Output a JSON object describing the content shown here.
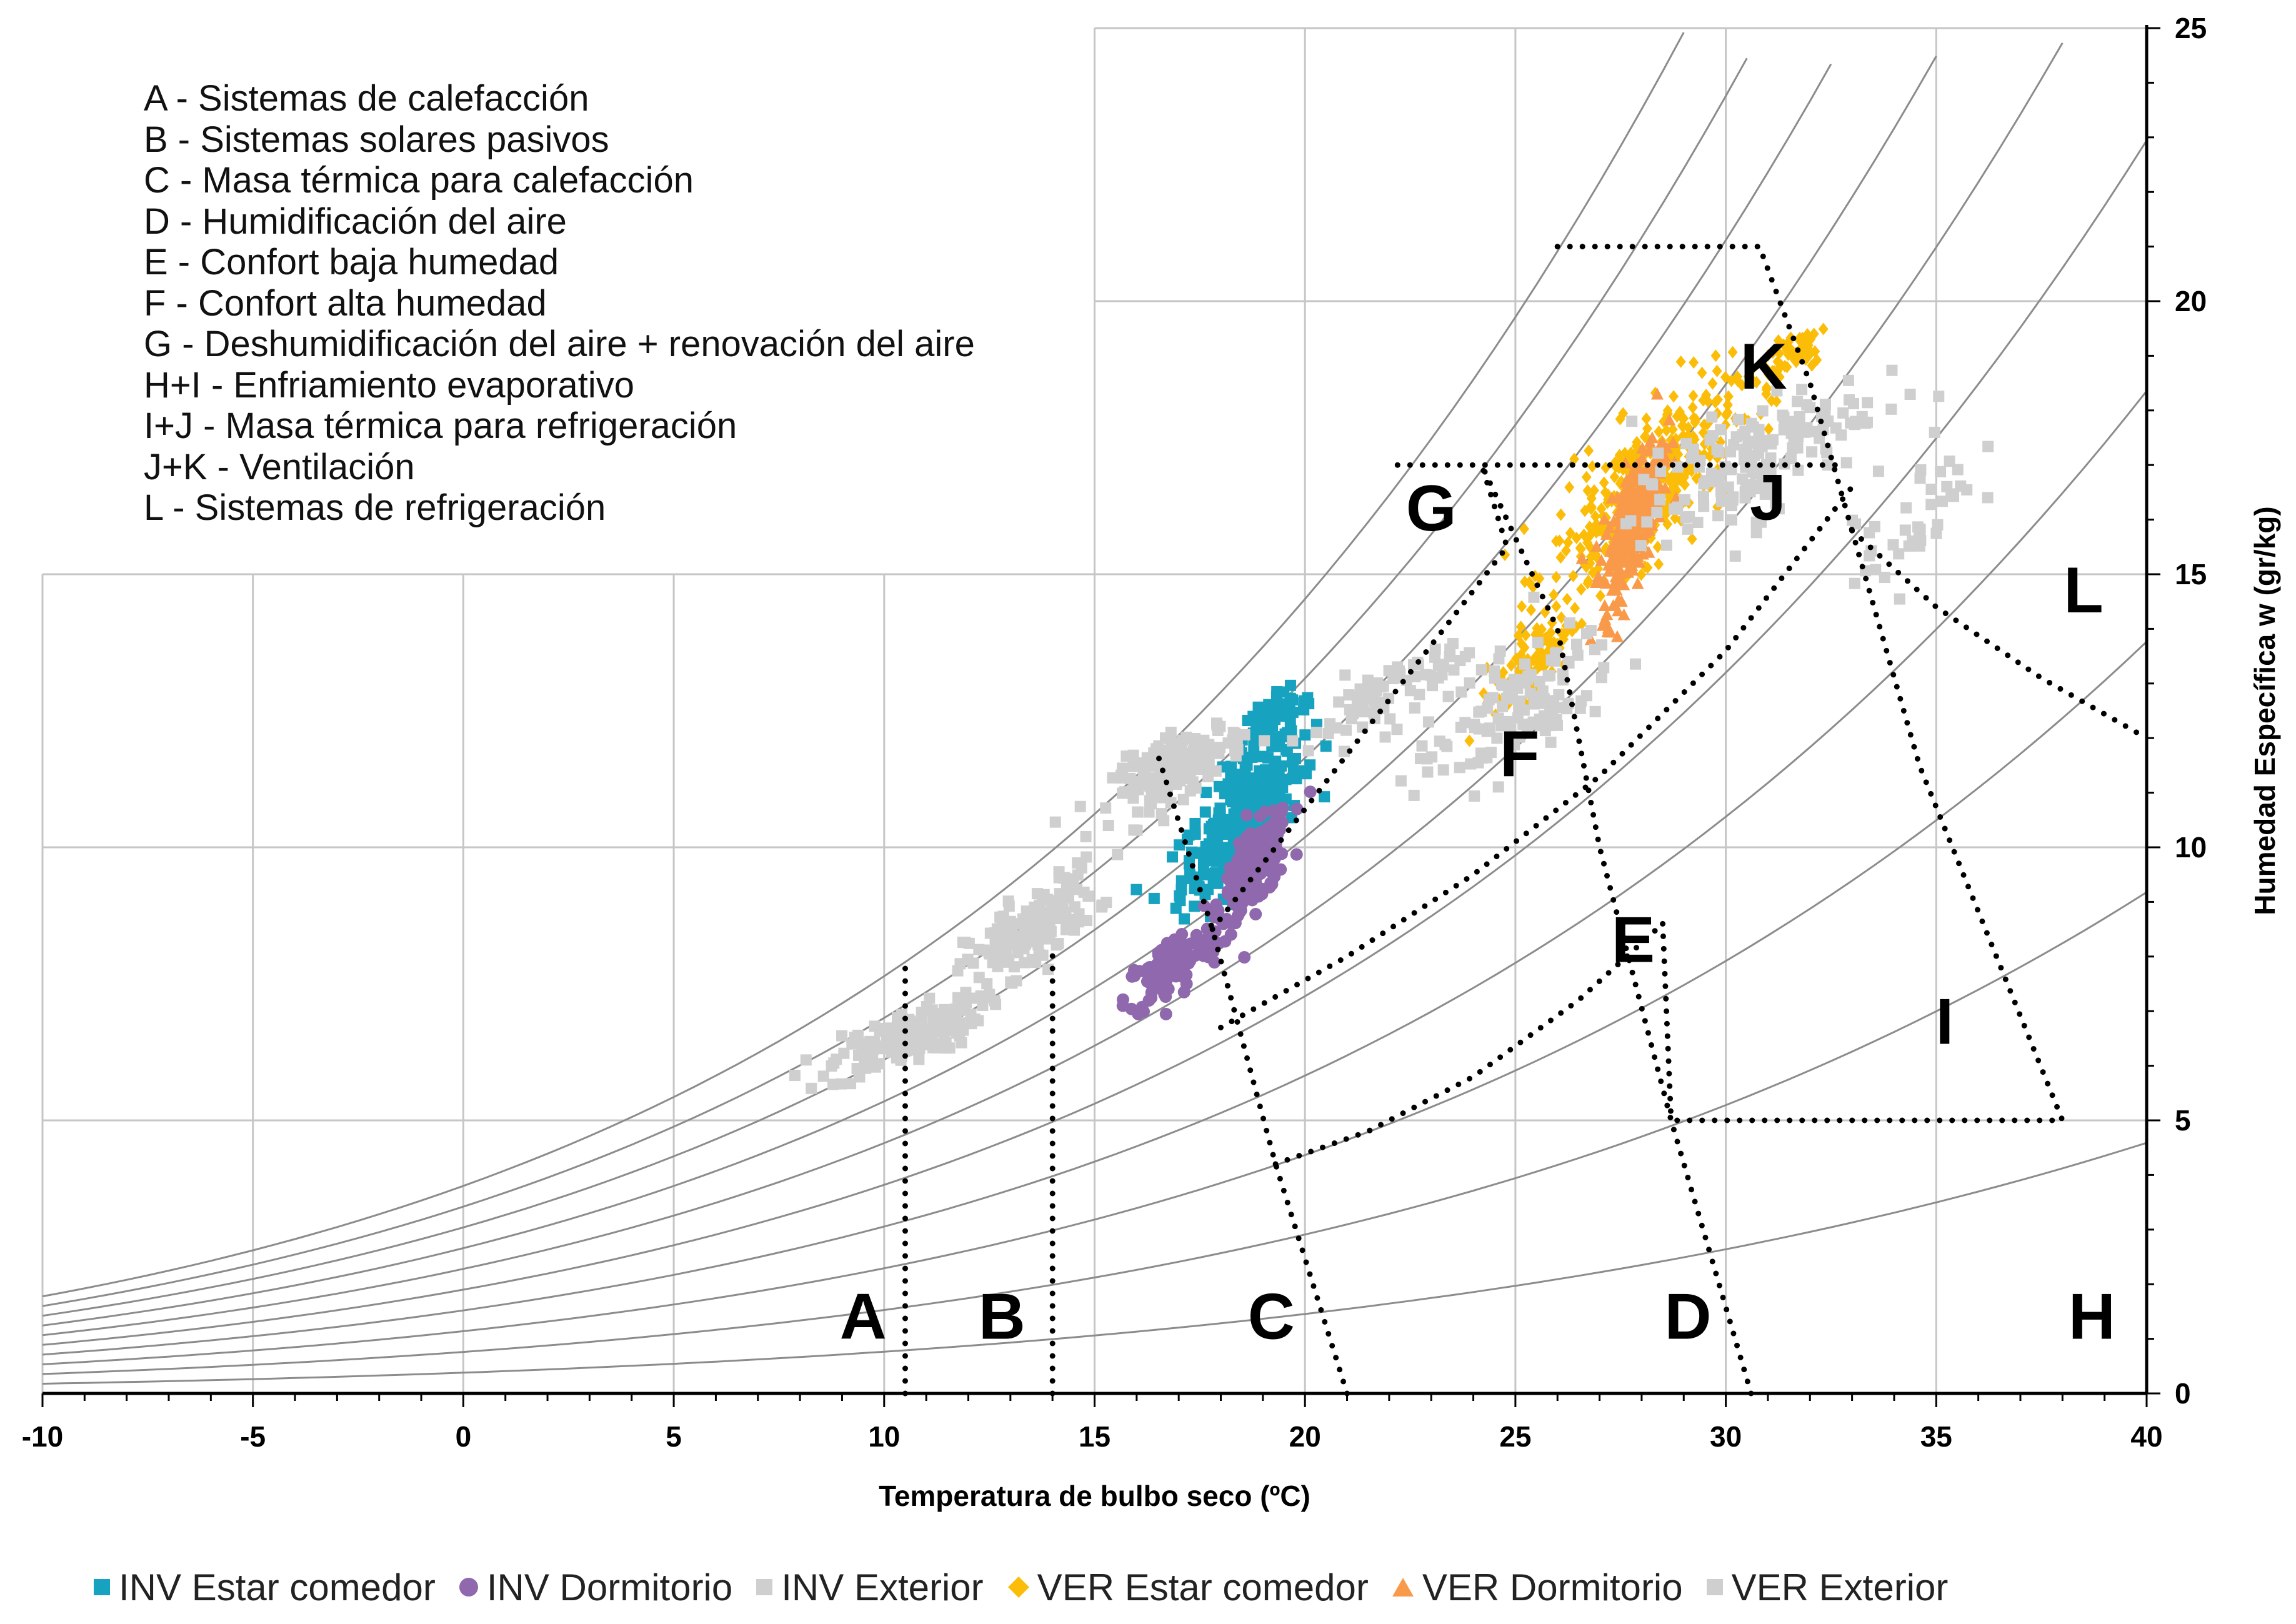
{
  "chart_data": {
    "type": "scatter",
    "title": "",
    "xlabel": "Temperatura de bulbo seco (ºC)",
    "ylabel": "Humedad Específica w (gr/kg)",
    "xlim": [
      -10,
      40
    ],
    "ylim": [
      0,
      25
    ],
    "x_ticks": [
      "-10",
      "-5",
      "0",
      "5",
      "10",
      "15",
      "20",
      "25",
      "30",
      "35",
      "40"
    ],
    "y_ticks": [
      "0",
      "5",
      "10",
      "15",
      "20",
      "25"
    ],
    "grid": true,
    "legend_position": "bottom",
    "relative_humidity_curves": [
      10,
      20,
      30,
      40,
      50,
      60,
      70,
      80,
      90,
      100
    ],
    "strategy_legend": [
      "A - Sistemas de calefacción",
      "B - Sistemas solares pasivos",
      "C - Masa térmica para calefacción",
      "D - Humidificación del aire",
      "E - Confort baja humedad",
      "F - Confort alta humedad",
      "G - Deshumidificación del aire + renovación del aire",
      "H+I - Enfriamiento evaporativo",
      "I+J - Masa térmica para refrigeración",
      "J+K - Ventilación",
      "L - Sistemas de refrigeración"
    ],
    "zone_labels": [
      {
        "text": "A",
        "x": 9.5,
        "y": 1.0
      },
      {
        "text": "B",
        "x": 12.8,
        "y": 1.0
      },
      {
        "text": "C",
        "x": 19.2,
        "y": 1.0
      },
      {
        "text": "D",
        "x": 29.1,
        "y": 1.0
      },
      {
        "text": "H",
        "x": 38.7,
        "y": 1.0
      },
      {
        "text": "E",
        "x": 27.8,
        "y": 7.9
      },
      {
        "text": "F",
        "x": 25.1,
        "y": 11.3
      },
      {
        "text": "G",
        "x": 23.0,
        "y": 15.8
      },
      {
        "text": "I",
        "x": 35.2,
        "y": 6.4
      },
      {
        "text": "J",
        "x": 31.0,
        "y": 16.0
      },
      {
        "text": "K",
        "x": 30.9,
        "y": 18.4
      },
      {
        "text": "L",
        "x": 38.5,
        "y": 14.3
      }
    ],
    "zone_boundaries": [
      {
        "name": "A",
        "points": [
          [
            10.5,
            0
          ],
          [
            10.5,
            7.8
          ]
        ]
      },
      {
        "name": "B",
        "points": [
          [
            14.0,
            0
          ],
          [
            14.0,
            8.2
          ]
        ]
      },
      {
        "name": "C",
        "points": [
          [
            21.0,
            0
          ],
          [
            19.3,
            4.2
          ],
          [
            17.8,
            8.5
          ],
          [
            16.5,
            11.7
          ]
        ]
      },
      {
        "name": "D",
        "points": [
          [
            30.6,
            0
          ],
          [
            28.7,
            5.0
          ],
          [
            27.0,
            10.0
          ],
          [
            26.0,
            14.0
          ],
          [
            24.2,
            17.0
          ]
        ]
      },
      {
        "name": "E",
        "points": [
          [
            19.3,
            4.2
          ],
          [
            21.5,
            4.8
          ],
          [
            24.0,
            5.8
          ],
          [
            26.5,
            7.2
          ],
          [
            28.5,
            8.6
          ]
        ]
      },
      {
        "name": "E-F",
        "points": [
          [
            18.0,
            6.7
          ],
          [
            21.0,
            8.0
          ],
          [
            24.0,
            9.5
          ],
          [
            27.0,
            11.3
          ],
          [
            30.0,
            13.6
          ],
          [
            33.0,
            16.6
          ]
        ]
      },
      {
        "name": "F-G",
        "points": [
          [
            17.8,
            8.5
          ],
          [
            24.8,
            15.5
          ],
          [
            24.2,
            17.0
          ]
        ]
      },
      {
        "name": "G-top",
        "points": [
          [
            22.2,
            17.0
          ],
          [
            32.8,
            17.0
          ]
        ]
      },
      {
        "name": "K-top",
        "points": [
          [
            26.0,
            21.0
          ],
          [
            30.8,
            21.0
          ],
          [
            32.0,
            18.5
          ],
          [
            33.0,
            15.8
          ]
        ]
      },
      {
        "name": "L",
        "points": [
          [
            33.0,
            15.8
          ],
          [
            35.0,
            14.4
          ],
          [
            37.5,
            13.1
          ],
          [
            40.0,
            12.0
          ]
        ]
      },
      {
        "name": "I",
        "points": [
          [
            33.0,
            15.8
          ],
          [
            34.6,
            11.5
          ],
          [
            38.0,
            5.0
          ],
          [
            28.7,
            5.0
          ]
        ]
      },
      {
        "name": "E-right",
        "points": [
          [
            28.5,
            8.6
          ],
          [
            28.7,
            5.0
          ]
        ]
      }
    ],
    "series": [
      {
        "name": "INV Estar comedor",
        "marker": "square",
        "color": "#17a3c0",
        "clusters": [
          {
            "x": 18.5,
            "y": 10.5,
            "sx": 1.2,
            "sy": 1.5,
            "n": 280
          },
          {
            "x": 19.2,
            "y": 12.3,
            "sx": 0.8,
            "sy": 0.6,
            "n": 60
          }
        ]
      },
      {
        "name": "INV Dormitorio",
        "marker": "circle",
        "color": "#8f68ad",
        "clusters": [
          {
            "x": 18.8,
            "y": 9.6,
            "sx": 0.7,
            "sy": 1.0,
            "n": 200
          },
          {
            "x": 16.8,
            "y": 7.8,
            "sx": 0.9,
            "sy": 0.8,
            "n": 120
          }
        ]
      },
      {
        "name": "INV Exterior",
        "marker": "square",
        "color": "#cfcfcf",
        "clusters": [
          {
            "x": 10.5,
            "y": 6.5,
            "sx": 1.5,
            "sy": 0.7,
            "n": 160
          },
          {
            "x": 13.5,
            "y": 8.5,
            "sx": 1.3,
            "sy": 1.0,
            "n": 160
          },
          {
            "x": 17.0,
            "y": 11.5,
            "sx": 1.3,
            "sy": 0.8,
            "n": 160
          },
          {
            "x": 22.0,
            "y": 12.8,
            "sx": 1.6,
            "sy": 0.9,
            "n": 80
          }
        ]
      },
      {
        "name": "VER Estar comedor",
        "marker": "diamond",
        "color": "#fbbd08",
        "clusters": [
          {
            "x": 28.0,
            "y": 16.5,
            "sx": 1.8,
            "sy": 1.8,
            "n": 380
          },
          {
            "x": 25.5,
            "y": 13.5,
            "sx": 0.8,
            "sy": 0.9,
            "n": 90
          },
          {
            "x": 31.5,
            "y": 19.0,
            "sx": 0.8,
            "sy": 0.7,
            "n": 60
          }
        ]
      },
      {
        "name": "VER Dormitorio",
        "marker": "triangle",
        "color": "#f99a4b",
        "clusters": [
          {
            "x": 27.8,
            "y": 16.0,
            "sx": 0.6,
            "sy": 1.5,
            "n": 300
          }
        ]
      },
      {
        "name": "VER Exterior",
        "marker": "square",
        "color": "#cfcfcf",
        "clusters": [
          {
            "x": 30.5,
            "y": 17.0,
            "sx": 2.3,
            "sy": 1.5,
            "n": 160
          },
          {
            "x": 25.0,
            "y": 12.5,
            "sx": 2.0,
            "sy": 1.5,
            "n": 120
          },
          {
            "x": 34.5,
            "y": 16.0,
            "sx": 1.2,
            "sy": 1.5,
            "n": 40
          }
        ]
      }
    ]
  }
}
